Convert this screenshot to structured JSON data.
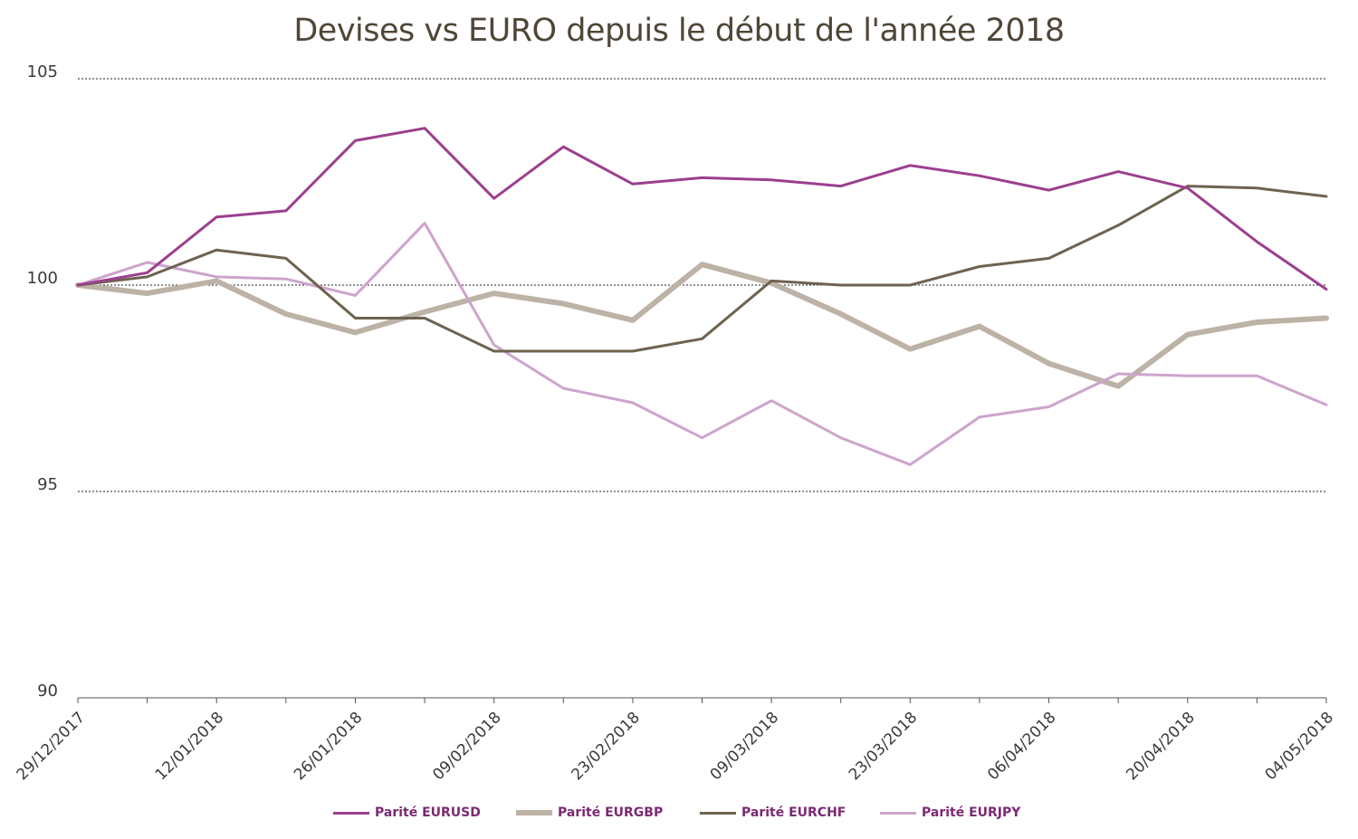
{
  "chart_data": {
    "type": "line",
    "title": "Devises vs EURO depuis le début de l'année 2018",
    "xlabel": "",
    "ylabel": "",
    "ylim": [
      90,
      105
    ],
    "yticks": [
      "90",
      "95",
      "100",
      "105"
    ],
    "grid": "horizontal dashed",
    "legend_position": "bottom",
    "x_tick_labels": [
      "29/12/2017",
      "12/01/2018",
      "26/01/2018",
      "09/02/2018",
      "23/02/2018",
      "09/03/2018",
      "23/03/2018",
      "06/04/2018",
      "20/04/2018",
      "04/05/2018"
    ],
    "x": [
      "29/12/2017",
      "05/01/2018",
      "12/01/2018",
      "19/01/2018",
      "26/01/2018",
      "02/02/2018",
      "09/02/2018",
      "16/02/2018",
      "23/02/2018",
      "02/03/2018",
      "09/03/2018",
      "16/03/2018",
      "23/03/2018",
      "30/03/2018",
      "06/04/2018",
      "13/04/2018",
      "20/04/2018",
      "27/04/2018",
      "04/05/2018"
    ],
    "series": [
      {
        "name": "Parité EURUSD",
        "color": "#9b3f8f",
        "values": [
          100.0,
          100.3,
          101.65,
          101.8,
          103.5,
          103.8,
          102.1,
          103.35,
          102.45,
          102.6,
          102.55,
          102.4,
          102.9,
          102.65,
          102.3,
          102.75,
          102.35,
          101.05,
          99.9
        ]
      },
      {
        "name": "Parité EURGBP",
        "color": "#bdb2a6",
        "values": [
          100.0,
          99.8,
          100.1,
          99.3,
          98.85,
          99.35,
          99.8,
          99.55,
          99.15,
          100.5,
          100.05,
          99.3,
          98.45,
          99.0,
          98.1,
          97.55,
          98.8,
          99.1,
          99.2
        ]
      },
      {
        "name": "Parité EURCHF",
        "color": "#6e6250",
        "values": [
          100.0,
          100.2,
          100.85,
          100.65,
          99.2,
          99.2,
          98.4,
          98.4,
          98.4,
          98.7,
          100.1,
          100.0,
          100.0,
          100.45,
          100.65,
          101.45,
          102.4,
          102.35,
          102.15
        ]
      },
      {
        "name": "Parité EURJPY",
        "color": "#cda4cc",
        "values": [
          100.0,
          100.55,
          100.2,
          100.15,
          99.75,
          101.5,
          98.55,
          97.5,
          97.15,
          96.3,
          97.2,
          96.3,
          95.65,
          96.8,
          97.05,
          97.85,
          97.8,
          97.8,
          97.1
        ]
      }
    ]
  }
}
